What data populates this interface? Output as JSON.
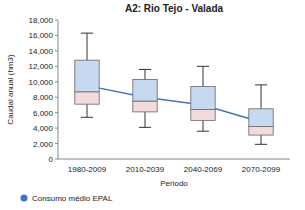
{
  "chart_data": {
    "type": "box",
    "title": "A2: Rio Tejo - Valada",
    "x_label": "Periodo",
    "y_label": "Caudal anual (hm3)",
    "categories": [
      "1980-2009",
      "2010-2039",
      "2040-2069",
      "2070-2099"
    ],
    "boxes": {
      "min": [
        5400,
        4100,
        3600,
        1900
      ],
      "q1": [
        7100,
        6100,
        5000,
        3100
      ],
      "median": [
        8700,
        7500,
        6400,
        4200
      ],
      "q3": [
        12800,
        10300,
        9400,
        6500
      ],
      "max": [
        16300,
        11600,
        12000,
        9600
      ]
    },
    "mean": {
      "color": "#4472c4",
      "marker": "diamond",
      "values": [
        9500,
        8000,
        7000,
        4800
      ]
    },
    "colors": [
      "#f2dcdb",
      "#c6d9f1"
    ],
    "annotation": "Consumo médio EPAL",
    "ylim": [
      0,
      18000
    ],
    "yticks": [
      0,
      {
        "value": 2000,
        "label": "2,000"
      },
      {
        "value": 4000,
        "label": "4,000"
      },
      {
        "value": 6000,
        "label": "6,000"
      },
      {
        "value": 8000,
        "label": "8,000"
      },
      {
        "value": 10000,
        "label": "10,000"
      },
      {
        "value": 12000,
        "label": "12,000"
      },
      {
        "value": 14000,
        "label": "14,000"
      },
      {
        "value": 16000,
        "label": "16,000"
      },
      {
        "value": 18000,
        "label": "18,000"
      }
    ],
    "grid": false
  }
}
